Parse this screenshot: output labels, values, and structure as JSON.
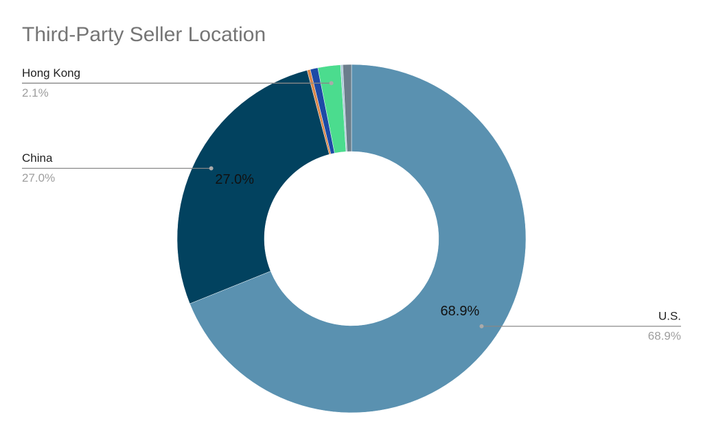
{
  "chart_data": {
    "type": "donut",
    "title": "Third-Party Seller Location",
    "categories": [
      "U.S.",
      "China",
      null,
      null,
      "Hong Kong",
      null,
      null
    ],
    "values": [
      68.9,
      27.0,
      0.3,
      0.7,
      2.1,
      0.2,
      0.8
    ],
    "value_labels": [
      "68.9%",
      "27.0%",
      null,
      null,
      "2.1%",
      null,
      null
    ],
    "colors": [
      "#5a91b0",
      "#02425f",
      "#d9874a",
      "#1d4aa6",
      "#4bdc8e",
      "#a9c9d8",
      "#6b7e8c"
    ]
  }
}
